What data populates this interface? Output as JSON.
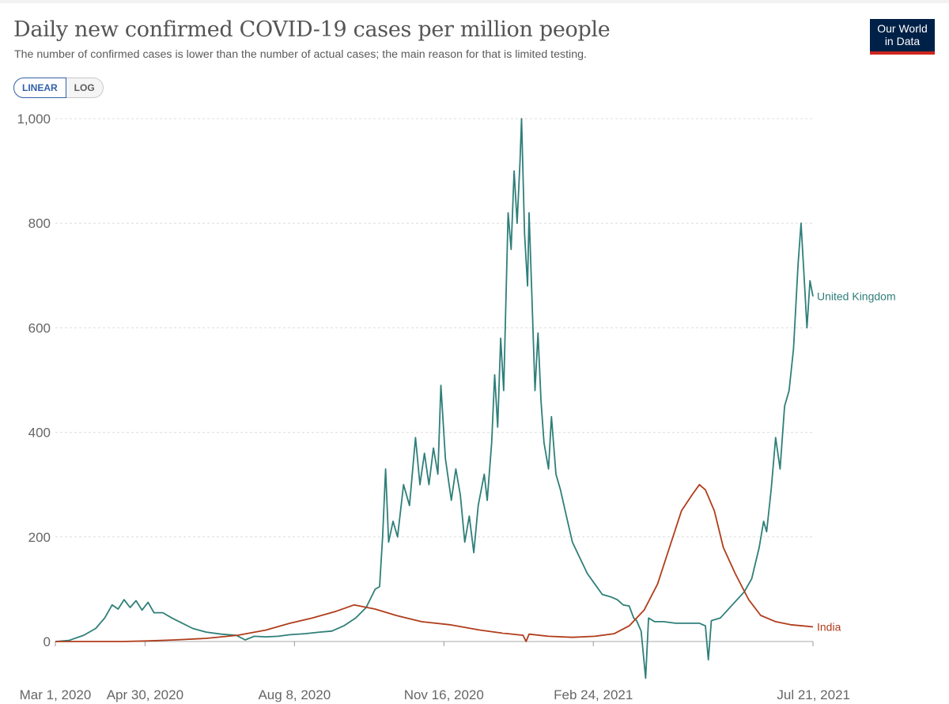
{
  "header": {
    "title": "Daily new confirmed COVID-19 cases per million people",
    "subtitle": "The number of confirmed cases is lower than the number of actual cases; the main reason for that is limited testing."
  },
  "logo": {
    "line1": "Our World",
    "line2": "in Data",
    "bg_color": "#002147",
    "accent_color": "#ce261e"
  },
  "scale_toggle": {
    "linear_label": "LINEAR",
    "log_label": "LOG",
    "selected": "LINEAR"
  },
  "chart_data": {
    "type": "line",
    "title": "Daily new confirmed COVID-19 cases per million people",
    "xlabel": "",
    "ylabel": "",
    "xlim": [
      "2020-03-01",
      "2021-07-21"
    ],
    "ylim": [
      0,
      1000
    ],
    "grid": "horizontal dashed",
    "x_ticks": [
      {
        "date": "2020-03-01",
        "label": "Mar 1, 2020"
      },
      {
        "date": "2020-04-30",
        "label": "Apr 30, 2020"
      },
      {
        "date": "2020-08-08",
        "label": "Aug 8, 2020"
      },
      {
        "date": "2020-11-16",
        "label": "Nov 16, 2020"
      },
      {
        "date": "2021-02-24",
        "label": "Feb 24, 2021"
      },
      {
        "date": "2021-07-21",
        "label": "Jul 21, 2021"
      }
    ],
    "y_ticks": [
      {
        "value": 0,
        "label": "0"
      },
      {
        "value": 200,
        "label": "200"
      },
      {
        "value": 400,
        "label": "400"
      },
      {
        "value": 600,
        "label": "600"
      },
      {
        "value": 800,
        "label": "800"
      },
      {
        "value": 1000,
        "label": "1,000"
      }
    ],
    "series": [
      {
        "name": "United Kingdom",
        "color": "#2f7f79",
        "points": [
          [
            "2020-03-01",
            0
          ],
          [
            "2020-03-10",
            2
          ],
          [
            "2020-03-20",
            12
          ],
          [
            "2020-03-28",
            25
          ],
          [
            "2020-04-03",
            45
          ],
          [
            "2020-04-08",
            70
          ],
          [
            "2020-04-12",
            62
          ],
          [
            "2020-04-16",
            80
          ],
          [
            "2020-04-20",
            65
          ],
          [
            "2020-04-24",
            78
          ],
          [
            "2020-04-28",
            60
          ],
          [
            "2020-05-02",
            75
          ],
          [
            "2020-05-06",
            55
          ],
          [
            "2020-05-12",
            55
          ],
          [
            "2020-05-18",
            45
          ],
          [
            "2020-05-25",
            35
          ],
          [
            "2020-06-01",
            25
          ],
          [
            "2020-06-10",
            18
          ],
          [
            "2020-06-20",
            14
          ],
          [
            "2020-06-30",
            12
          ],
          [
            "2020-07-06",
            3
          ],
          [
            "2020-07-12",
            10
          ],
          [
            "2020-07-20",
            9
          ],
          [
            "2020-07-28",
            10
          ],
          [
            "2020-08-05",
            13
          ],
          [
            "2020-08-15",
            15
          ],
          [
            "2020-08-25",
            18
          ],
          [
            "2020-09-02",
            20
          ],
          [
            "2020-09-10",
            30
          ],
          [
            "2020-09-18",
            45
          ],
          [
            "2020-09-25",
            65
          ],
          [
            "2020-10-01",
            100
          ],
          [
            "2020-10-04",
            105
          ],
          [
            "2020-10-06",
            200
          ],
          [
            "2020-10-08",
            330
          ],
          [
            "2020-10-10",
            190
          ],
          [
            "2020-10-13",
            230
          ],
          [
            "2020-10-16",
            200
          ],
          [
            "2020-10-20",
            300
          ],
          [
            "2020-10-24",
            260
          ],
          [
            "2020-10-28",
            390
          ],
          [
            "2020-10-31",
            300
          ],
          [
            "2020-11-03",
            360
          ],
          [
            "2020-11-06",
            300
          ],
          [
            "2020-11-09",
            370
          ],
          [
            "2020-11-12",
            320
          ],
          [
            "2020-11-14",
            490
          ],
          [
            "2020-11-17",
            350
          ],
          [
            "2020-11-21",
            270
          ],
          [
            "2020-11-24",
            330
          ],
          [
            "2020-11-27",
            280
          ],
          [
            "2020-11-30",
            190
          ],
          [
            "2020-12-03",
            240
          ],
          [
            "2020-12-06",
            170
          ],
          [
            "2020-12-09",
            260
          ],
          [
            "2020-12-13",
            320
          ],
          [
            "2020-12-15",
            270
          ],
          [
            "2020-12-18",
            380
          ],
          [
            "2020-12-20",
            510
          ],
          [
            "2020-12-22",
            410
          ],
          [
            "2020-12-24",
            580
          ],
          [
            "2020-12-26",
            480
          ],
          [
            "2020-12-29",
            820
          ],
          [
            "2020-12-31",
            750
          ],
          [
            "2021-01-02",
            900
          ],
          [
            "2021-01-04",
            800
          ],
          [
            "2021-01-06",
            920
          ],
          [
            "2021-01-07",
            1000
          ],
          [
            "2021-01-09",
            780
          ],
          [
            "2021-01-11",
            680
          ],
          [
            "2021-01-12",
            820
          ],
          [
            "2021-01-14",
            650
          ],
          [
            "2021-01-16",
            480
          ],
          [
            "2021-01-18",
            590
          ],
          [
            "2021-01-20",
            460
          ],
          [
            "2021-01-22",
            380
          ],
          [
            "2021-01-25",
            330
          ],
          [
            "2021-01-27",
            430
          ],
          [
            "2021-01-30",
            320
          ],
          [
            "2021-02-02",
            290
          ],
          [
            "2021-02-06",
            240
          ],
          [
            "2021-02-10",
            190
          ],
          [
            "2021-02-15",
            160
          ],
          [
            "2021-02-20",
            130
          ],
          [
            "2021-02-25",
            110
          ],
          [
            "2021-03-02",
            90
          ],
          [
            "2021-03-08",
            85
          ],
          [
            "2021-03-12",
            80
          ],
          [
            "2021-03-16",
            70
          ],
          [
            "2021-03-20",
            68
          ],
          [
            "2021-03-23",
            45
          ],
          [
            "2021-03-25",
            40
          ],
          [
            "2021-03-28",
            20
          ],
          [
            "2021-03-31",
            -70
          ],
          [
            "2021-04-02",
            45
          ],
          [
            "2021-04-06",
            38
          ],
          [
            "2021-04-12",
            38
          ],
          [
            "2021-04-20",
            35
          ],
          [
            "2021-04-28",
            35
          ],
          [
            "2021-05-06",
            35
          ],
          [
            "2021-05-10",
            30
          ],
          [
            "2021-05-12",
            -35
          ],
          [
            "2021-05-14",
            40
          ],
          [
            "2021-05-20",
            45
          ],
          [
            "2021-05-28",
            70
          ],
          [
            "2021-06-05",
            95
          ],
          [
            "2021-06-10",
            120
          ],
          [
            "2021-06-15",
            180
          ],
          [
            "2021-06-18",
            230
          ],
          [
            "2021-06-20",
            210
          ],
          [
            "2021-06-23",
            290
          ],
          [
            "2021-06-26",
            390
          ],
          [
            "2021-06-29",
            330
          ],
          [
            "2021-07-02",
            450
          ],
          [
            "2021-07-05",
            480
          ],
          [
            "2021-07-08",
            560
          ],
          [
            "2021-07-11",
            720
          ],
          [
            "2021-07-13",
            800
          ],
          [
            "2021-07-15",
            700
          ],
          [
            "2021-07-17",
            600
          ],
          [
            "2021-07-19",
            690
          ],
          [
            "2021-07-21",
            660
          ]
        ]
      },
      {
        "name": "India",
        "color": "#b03d1b",
        "points": [
          [
            "2020-03-01",
            0
          ],
          [
            "2020-04-15",
            0
          ],
          [
            "2020-05-01",
            1
          ],
          [
            "2020-05-20",
            3
          ],
          [
            "2020-06-10",
            6
          ],
          [
            "2020-07-01",
            12
          ],
          [
            "2020-07-20",
            22
          ],
          [
            "2020-08-05",
            35
          ],
          [
            "2020-08-20",
            45
          ],
          [
            "2020-09-05",
            58
          ],
          [
            "2020-09-17",
            70
          ],
          [
            "2020-10-01",
            62
          ],
          [
            "2020-10-15",
            50
          ],
          [
            "2020-11-01",
            38
          ],
          [
            "2020-11-20",
            32
          ],
          [
            "2020-12-10",
            22
          ],
          [
            "2020-12-25",
            16
          ],
          [
            "2021-01-08",
            12
          ],
          [
            "2021-01-10",
            0
          ],
          [
            "2021-01-12",
            14
          ],
          [
            "2021-01-25",
            10
          ],
          [
            "2021-02-10",
            8
          ],
          [
            "2021-02-25",
            10
          ],
          [
            "2021-03-10",
            15
          ],
          [
            "2021-03-20",
            30
          ],
          [
            "2021-03-30",
            60
          ],
          [
            "2021-04-08",
            110
          ],
          [
            "2021-04-16",
            180
          ],
          [
            "2021-04-24",
            250
          ],
          [
            "2021-05-01",
            280
          ],
          [
            "2021-05-06",
            300
          ],
          [
            "2021-05-10",
            290
          ],
          [
            "2021-05-16",
            250
          ],
          [
            "2021-05-22",
            180
          ],
          [
            "2021-05-30",
            130
          ],
          [
            "2021-06-08",
            80
          ],
          [
            "2021-06-16",
            50
          ],
          [
            "2021-06-26",
            38
          ],
          [
            "2021-07-06",
            32
          ],
          [
            "2021-07-14",
            30
          ],
          [
            "2021-07-21",
            28
          ]
        ]
      }
    ]
  }
}
